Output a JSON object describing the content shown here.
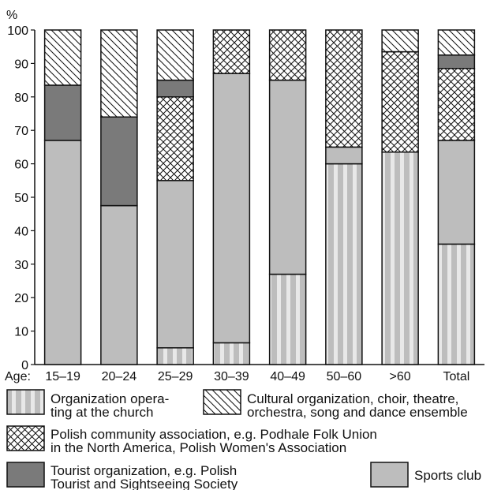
{
  "chart_data": {
    "type": "bar",
    "stacked": true,
    "ylabel": "%",
    "ylim": [
      0,
      100
    ],
    "yticks": [
      0,
      10,
      20,
      30,
      40,
      50,
      60,
      70,
      80,
      90,
      100
    ],
    "xlabel_prefix": "Age:",
    "categories": [
      "15–19",
      "20–24",
      "25–29",
      "30–39",
      "40–49",
      "50–60",
      ">60",
      "Total"
    ],
    "series": [
      {
        "key": "church",
        "fill": "stripes",
        "values": [
          0,
          0,
          5,
          6.5,
          27,
          60,
          63.5,
          36
        ]
      },
      {
        "key": "sports",
        "fill": "light-gray",
        "values": [
          67,
          47.5,
          50,
          80.5,
          58,
          5,
          0,
          31
        ]
      },
      {
        "key": "community",
        "fill": "crosshatch",
        "values": [
          0,
          0,
          25,
          13,
          15,
          35,
          30,
          21.5
        ]
      },
      {
        "key": "tourist",
        "fill": "dark-gray",
        "values": [
          16.5,
          26.5,
          5,
          0,
          0,
          0,
          0,
          4
        ]
      },
      {
        "key": "cultural",
        "fill": "diagonal",
        "values": [
          16.5,
          26,
          15,
          0,
          0,
          0,
          6.5,
          7.5
        ]
      }
    ],
    "legend": [
      {
        "key": "church",
        "lines": [
          "Organization opera-",
          "ting at the church"
        ]
      },
      {
        "key": "cultural",
        "lines": [
          "Cultural organization, choir, theatre,",
          "orchestra, song and dance ensemble"
        ]
      },
      {
        "key": "community",
        "lines": [
          "Polish community association, e.g. Podhale Folk Union",
          "in the North America, Polish Women's Association"
        ]
      },
      {
        "key": "tourist",
        "lines": [
          "Tourist organization, e.g. Polish",
          "Tourist and Sightseeing Society"
        ]
      },
      {
        "key": "sports",
        "lines": [
          "Sports club"
        ]
      }
    ],
    "legend_placement": "bottom",
    "grid": false,
    "colors": {
      "light": "#bdbdbd",
      "dark": "#7a7a7a",
      "stripe_light": "#e8e8e8",
      "stroke": "#111111"
    }
  }
}
